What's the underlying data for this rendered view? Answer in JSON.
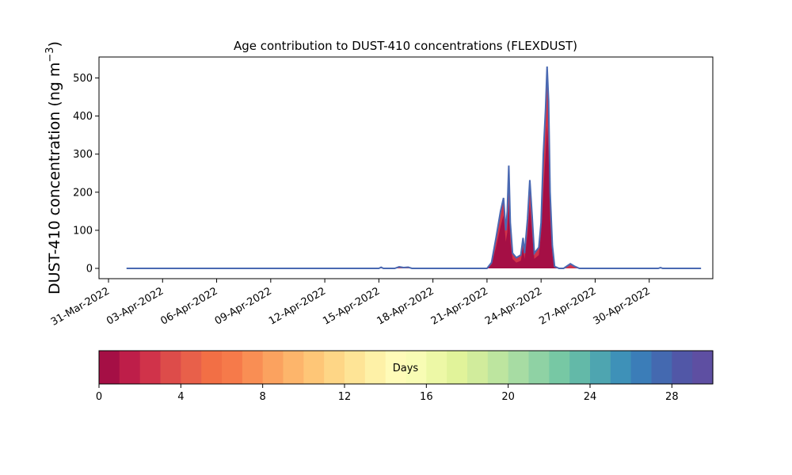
{
  "chart_data": {
    "type": "area",
    "title": "Age contribution to DUST-410 concentrations (FLEXDUST)",
    "ylabel_main": "DUST-410 concentration (ng m",
    "ylabel_sup": "−3",
    "ylabel_close": ")",
    "xlabel": "",
    "x_range": [
      "2022-03-31",
      "2022-05-03"
    ],
    "ylim": [
      -27,
      555
    ],
    "grid": false,
    "x_ticks": [
      {
        "date": "2022-03-31",
        "label": "31-Mar-2022"
      },
      {
        "date": "2022-04-03",
        "label": "03-Apr-2022"
      },
      {
        "date": "2022-04-06",
        "label": "06-Apr-2022"
      },
      {
        "date": "2022-04-09",
        "label": "09-Apr-2022"
      },
      {
        "date": "2022-04-12",
        "label": "12-Apr-2022"
      },
      {
        "date": "2022-04-15",
        "label": "15-Apr-2022"
      },
      {
        "date": "2022-04-18",
        "label": "18-Apr-2022"
      },
      {
        "date": "2022-04-21",
        "label": "21-Apr-2022"
      },
      {
        "date": "2022-04-24",
        "label": "24-Apr-2022"
      },
      {
        "date": "2022-04-27",
        "label": "27-Apr-2022"
      },
      {
        "date": "2022-04-30",
        "label": "30-Apr-2022"
      }
    ],
    "y_ticks": [
      0,
      100,
      200,
      300,
      400,
      500
    ],
    "series": [
      {
        "total": [
          [
            "2022-04-01 00:00",
            0
          ],
          [
            "2022-04-15 00:00",
            0
          ],
          [
            "2022-04-15 03:00",
            3
          ],
          [
            "2022-04-15 06:00",
            0
          ],
          [
            "2022-04-15 21:00",
            0
          ],
          [
            "2022-04-16 03:00",
            4
          ],
          [
            "2022-04-16 09:00",
            2
          ],
          [
            "2022-04-16 15:00",
            3
          ],
          [
            "2022-04-16 20:00",
            0
          ],
          [
            "2022-04-21 00:00",
            0
          ],
          [
            "2022-04-21 06:00",
            15
          ],
          [
            "2022-04-21 12:00",
            80
          ],
          [
            "2022-04-21 18:00",
            150
          ],
          [
            "2022-04-21 22:00",
            185
          ],
          [
            "2022-04-22 01:00",
            100
          ],
          [
            "2022-04-22 03:00",
            150
          ],
          [
            "2022-04-22 05:00",
            270
          ],
          [
            "2022-04-22 07:00",
            120
          ],
          [
            "2022-04-22 10:00",
            40
          ],
          [
            "2022-04-22 15:00",
            28
          ],
          [
            "2022-04-22 21:00",
            35
          ],
          [
            "2022-04-23 00:00",
            80
          ],
          [
            "2022-04-23 02:00",
            40
          ],
          [
            "2022-04-23 06:00",
            130
          ],
          [
            "2022-04-23 09:00",
            232
          ],
          [
            "2022-04-23 12:00",
            140
          ],
          [
            "2022-04-23 15:00",
            40
          ],
          [
            "2022-04-23 21:00",
            55
          ],
          [
            "2022-04-24 00:00",
            120
          ],
          [
            "2022-04-24 03:00",
            300
          ],
          [
            "2022-04-24 06:00",
            420
          ],
          [
            "2022-04-24 08:00",
            530
          ],
          [
            "2022-04-24 10:00",
            440
          ],
          [
            "2022-04-24 12:00",
            200
          ],
          [
            "2022-04-24 15:00",
            60
          ],
          [
            "2022-04-24 18:00",
            5
          ],
          [
            "2022-04-25 00:00",
            0
          ],
          [
            "2022-04-25 06:00",
            0
          ],
          [
            "2022-04-25 15:00",
            12
          ],
          [
            "2022-04-25 21:00",
            5
          ],
          [
            "2022-04-26 03:00",
            0
          ],
          [
            "2022-04-30 12:00",
            0
          ],
          [
            "2022-04-30 15:00",
            2
          ],
          [
            "2022-04-30 18:00",
            0
          ],
          [
            "2022-05-02 21:00",
            0
          ]
        ],
        "young": [
          [
            "2022-04-21 00:00",
            0
          ],
          [
            "2022-04-21 06:00",
            10
          ],
          [
            "2022-04-21 12:00",
            55
          ],
          [
            "2022-04-21 18:00",
            110
          ],
          [
            "2022-04-21 22:00",
            140
          ],
          [
            "2022-04-22 01:00",
            70
          ],
          [
            "2022-04-22 03:00",
            95
          ],
          [
            "2022-04-22 05:00",
            170
          ],
          [
            "2022-04-22 07:00",
            70
          ],
          [
            "2022-04-22 10:00",
            25
          ],
          [
            "2022-04-22 15:00",
            15
          ],
          [
            "2022-04-22 21:00",
            20
          ],
          [
            "2022-04-23 00:00",
            55
          ],
          [
            "2022-04-23 02:00",
            25
          ],
          [
            "2022-04-23 06:00",
            90
          ],
          [
            "2022-04-23 09:00",
            165
          ],
          [
            "2022-04-23 12:00",
            90
          ],
          [
            "2022-04-23 15:00",
            25
          ],
          [
            "2022-04-23 21:00",
            35
          ],
          [
            "2022-04-24 00:00",
            90
          ],
          [
            "2022-04-24 03:00",
            200
          ],
          [
            "2022-04-24 06:00",
            300
          ],
          [
            "2022-04-24 08:00",
            375
          ],
          [
            "2022-04-24 10:00",
            300
          ],
          [
            "2022-04-24 12:00",
            130
          ],
          [
            "2022-04-24 15:00",
            35
          ],
          [
            "2022-04-24 18:00",
            3
          ],
          [
            "2022-04-25 00:00",
            0
          ]
        ]
      }
    ],
    "colorbar": {
      "label": "Days",
      "min": 0,
      "max": 30,
      "ticks": [
        0,
        4,
        8,
        12,
        16,
        20,
        24,
        28
      ],
      "colors": [
        "#a50f45",
        "#be1e49",
        "#d0334a",
        "#dd4c4a",
        "#e8604a",
        "#f26f45",
        "#f67a4a",
        "#f98e54",
        "#fba25f",
        "#fdb56b",
        "#fec677",
        "#fed686",
        "#fee496",
        "#fef1a7",
        "#fffbb8",
        "#f8fcb4",
        "#edf8a6",
        "#e1f39a",
        "#d1ec9c",
        "#bde59f",
        "#a7dca3",
        "#8fd2a4",
        "#77c8a4",
        "#63b9a8",
        "#4ea5b0",
        "#3e91b8",
        "#3b7db8",
        "#4469b0",
        "#5157a7",
        "#5e4fa2"
      ]
    },
    "line_color": "#4a69b2"
  }
}
